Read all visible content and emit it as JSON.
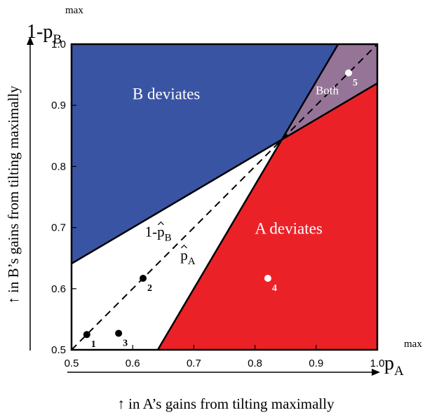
{
  "chart_data": {
    "type": "scatter",
    "xlim": [
      0.5,
      1.0
    ],
    "ylim": [
      0.5,
      1.0
    ],
    "x_ticks": [
      "0.5",
      "0.6",
      "0.7",
      "0.8",
      "0.9",
      "1.0"
    ],
    "y_ticks": [
      "0.5",
      "0.6",
      "0.7",
      "0.8",
      "0.9",
      "1.0"
    ],
    "grid": false,
    "x_corner_title": {
      "base": "p",
      "sub": "A",
      "sup": "max"
    },
    "y_corner_title": {
      "prefix": "1-",
      "base": "p",
      "sub": "B",
      "sup": "max"
    },
    "xlabel": "↑ in A’s gains from tilting maximally",
    "ylabel": "↑ in B’s gains from tilting maximally",
    "diagonal": {
      "style": "dashed",
      "from": [
        0.5,
        0.5
      ],
      "to": [
        1.0,
        1.0
      ]
    },
    "boundary_lines": [
      {
        "name": "1-p̂B",
        "label_prefix": "1-",
        "label_base": "p",
        "label_sub": "B",
        "label_at": [
          0.62,
          0.685
        ],
        "from": [
          0.5,
          0.641
        ],
        "to": [
          1.0,
          0.936
        ]
      },
      {
        "name": "p̂A",
        "label_prefix": "",
        "label_base": "p",
        "label_sub": "A",
        "label_at": [
          0.678,
          0.647
        ],
        "from": [
          0.641,
          0.5
        ],
        "to": [
          0.936,
          1.0
        ]
      }
    ],
    "regions": [
      {
        "name": "B deviates",
        "label": "B deviates",
        "color": "#3a54a4",
        "label_at": [
          0.655,
          0.91
        ],
        "polygon": [
          [
            0.5,
            0.641
          ],
          [
            0.841,
            0.841
          ],
          [
            0.936,
            1.0
          ],
          [
            0.5,
            1.0
          ]
        ]
      },
      {
        "name": "A deviates",
        "label": "A deviates",
        "color": "#ea2228",
        "label_at": [
          0.855,
          0.69
        ],
        "polygon": [
          [
            0.641,
            0.5
          ],
          [
            1.0,
            0.5
          ],
          [
            1.0,
            0.936
          ],
          [
            0.841,
            0.841
          ]
        ]
      },
      {
        "name": "Both",
        "label": "Both",
        "color": "#957497",
        "label_at": [
          0.918,
          0.918
        ],
        "polygon": [
          [
            0.841,
            0.841
          ],
          [
            1.0,
            0.936
          ],
          [
            1.0,
            1.0
          ],
          [
            0.936,
            1.0
          ]
        ]
      }
    ],
    "points": [
      {
        "label": "1",
        "x": 0.525,
        "y": 0.525,
        "color": "#000000",
        "label_color": "#000000"
      },
      {
        "label": "2",
        "x": 0.617,
        "y": 0.617,
        "color": "#000000",
        "label_color": "#000000"
      },
      {
        "label": "3",
        "x": 0.577,
        "y": 0.527,
        "color": "#000000",
        "label_color": "#000000"
      },
      {
        "label": "4",
        "x": 0.821,
        "y": 0.617,
        "color": "#ffffff",
        "label_color": "#ffffff"
      },
      {
        "label": "5",
        "x": 0.953,
        "y": 0.953,
        "color": "#ffffff",
        "label_color": "#ffffff"
      }
    ]
  }
}
